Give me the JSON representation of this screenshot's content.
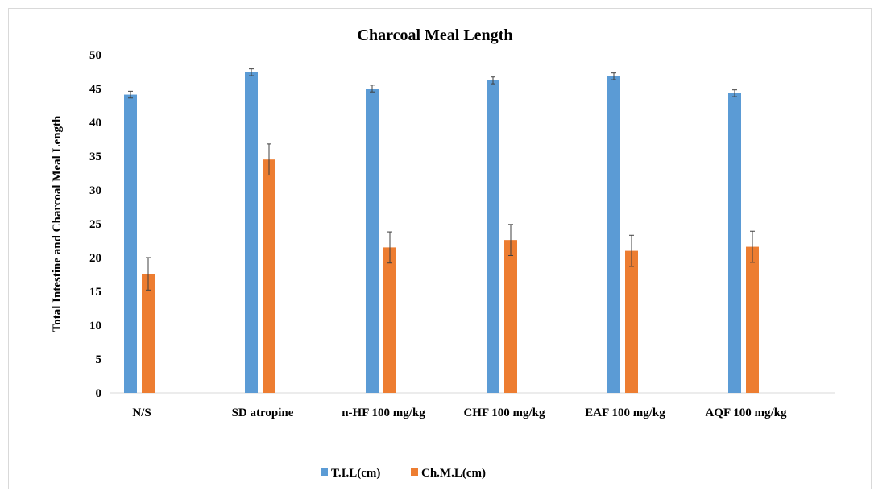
{
  "chart_data": {
    "type": "bar",
    "title": "Charcoal Meal Length",
    "xlabel": "",
    "ylabel": "Total Intestine and Charcoal Meal Length",
    "ylim": [
      0,
      50
    ],
    "yticks": [
      0,
      5,
      10,
      15,
      20,
      25,
      30,
      35,
      40,
      45,
      50
    ],
    "grid": false,
    "legend_position": "bottom",
    "categories": [
      "N/S",
      "SD atropine",
      "n-HF 100 mg/kg",
      "CHF 100 mg/kg",
      "EAF 100 mg/kg",
      "AQF 100 mg/kg"
    ],
    "series": [
      {
        "name": "T.I.L(cm)",
        "color": "#5b9bd5",
        "values": [
          44.1,
          47.4,
          45.0,
          46.2,
          46.8,
          44.3
        ],
        "errors": [
          0.5,
          0.5,
          0.5,
          0.5,
          0.5,
          0.5
        ]
      },
      {
        "name": "Ch.M.L(cm)",
        "color": "#ed7d31",
        "values": [
          17.6,
          34.5,
          21.5,
          22.6,
          21.0,
          21.6
        ],
        "errors": [
          2.4,
          2.3,
          2.3,
          2.3,
          2.3,
          2.3
        ]
      }
    ]
  }
}
